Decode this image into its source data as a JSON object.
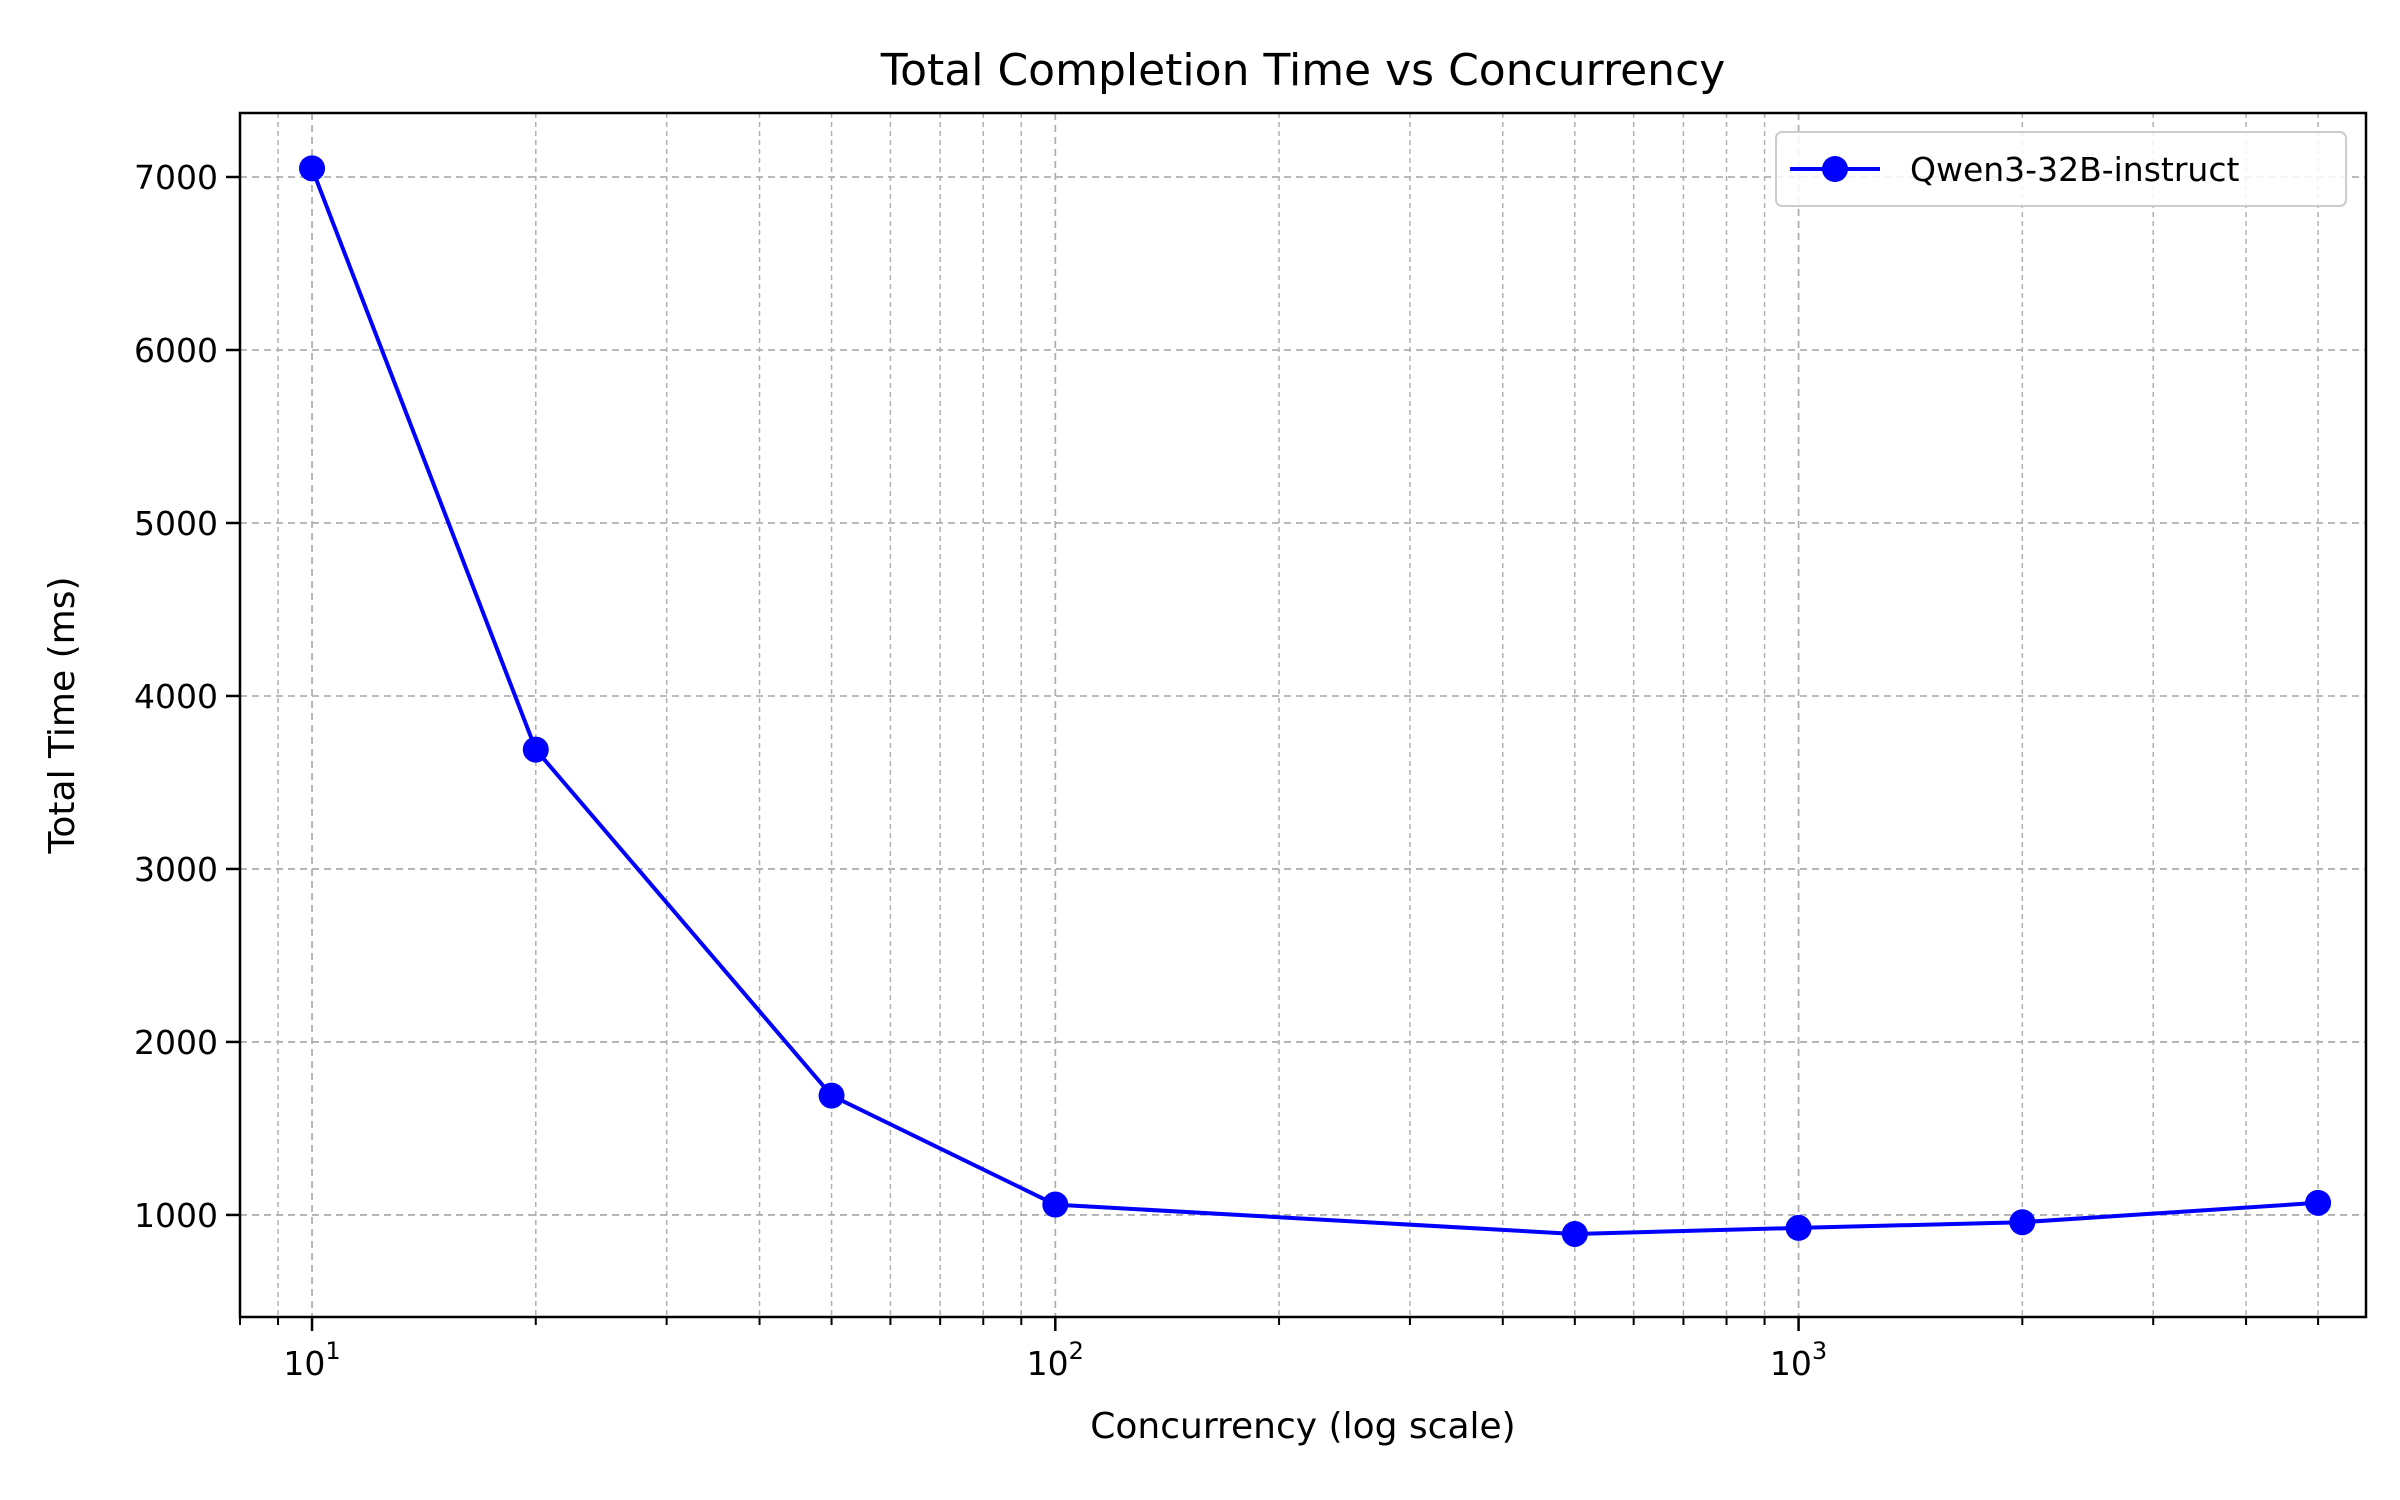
{
  "chart_data": {
    "type": "line",
    "title": "Total Completion Time vs Concurrency",
    "xlabel": "Concurrency (log scale)",
    "ylabel": "Total Time (ms)",
    "xscale": "log",
    "xlim": [
      8,
      5800
    ],
    "ylim": [
      410,
      7370
    ],
    "xticks": [
      10,
      100,
      1000
    ],
    "xtick_labels": [
      {
        "base": "10",
        "exp": "1"
      },
      {
        "base": "10",
        "exp": "2"
      },
      {
        "base": "10",
        "exp": "3"
      }
    ],
    "yticks": [
      1000,
      2000,
      3000,
      4000,
      5000,
      6000,
      7000
    ],
    "ytick_labels": [
      "1000",
      "2000",
      "3000",
      "4000",
      "5000",
      "6000",
      "7000"
    ],
    "grid": {
      "major": true,
      "minor": true,
      "style": "dashed"
    },
    "legend": {
      "position": "top-right"
    },
    "series": [
      {
        "name": "Qwen3-32B-instruct",
        "color": "#0000ff",
        "marker": "circle",
        "x": [
          10,
          20,
          50,
          100,
          500,
          1000,
          2000,
          5000
        ],
        "y": [
          7050,
          3690,
          1690,
          1060,
          890,
          925,
          958,
          1070
        ]
      }
    ]
  }
}
